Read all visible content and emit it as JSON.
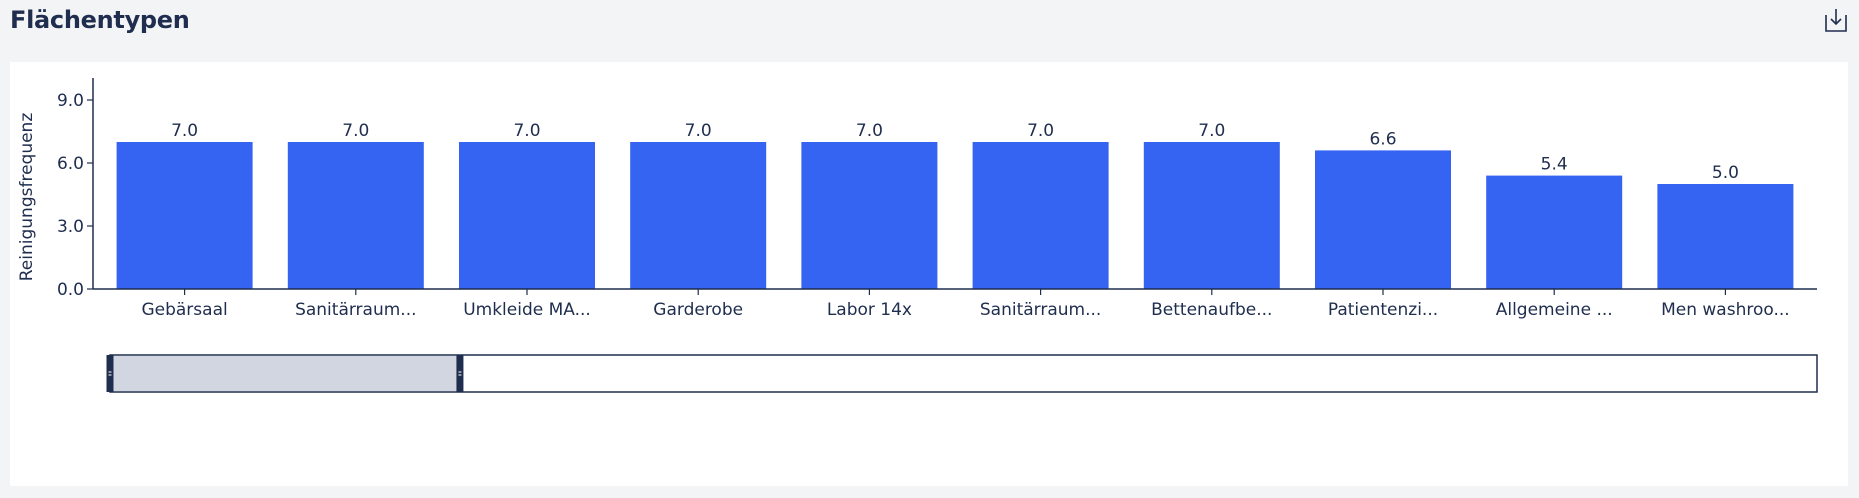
{
  "header": {
    "title": "Flächentypen",
    "download_icon": "download-icon"
  },
  "colors": {
    "bar": "#3563f2",
    "axis": "#1f2d4e",
    "text": "#1f2d4e",
    "slider_fill": "#d2d6e1"
  },
  "slider": {
    "start_fraction": 0.0,
    "end_fraction": 0.205
  },
  "chart_data": {
    "type": "bar",
    "ylabel": "Reinigungsfrequenz",
    "xlabel": "",
    "ylim": [
      0,
      9.0
    ],
    "yticks": [
      "0.0",
      "3.0",
      "6.0",
      "9.0"
    ],
    "categories": [
      "Gebärsaal",
      "Sanitärraum...",
      "Umkleide MA...",
      "Garderobe",
      "Labor 14x",
      "Sanitärraum...",
      "Bettenaufbe...",
      "Patientenzi...",
      "Allgemeine ...",
      "Men washroo..."
    ],
    "values": [
      7.0,
      7.0,
      7.0,
      7.0,
      7.0,
      7.0,
      7.0,
      6.6,
      5.4,
      5.0
    ],
    "value_labels": [
      "7.0",
      "7.0",
      "7.0",
      "7.0",
      "7.0",
      "7.0",
      "7.0",
      "6.6",
      "5.4",
      "5.0"
    ]
  }
}
